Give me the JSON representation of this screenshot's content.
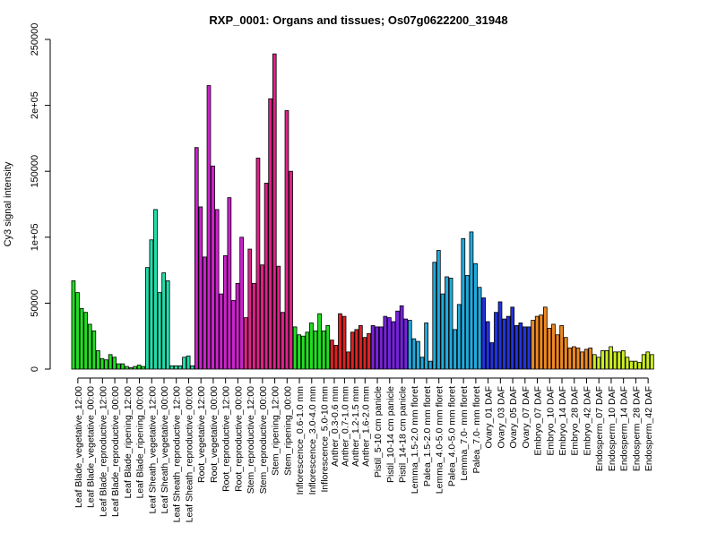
{
  "chart_data": {
    "type": "bar",
    "title": "RXP_0001: Organs and tissues; Os07g0622200_31948",
    "ylabel": "Cy3 signal intensity",
    "xlabel": "",
    "ylim": [
      0,
      250000
    ],
    "yticks": [
      {
        "value": 0,
        "label": "0"
      },
      {
        "value": 50000,
        "label": "50000"
      },
      {
        "value": 100000,
        "label": "1e+05"
      },
      {
        "value": 150000,
        "label": "150000"
      },
      {
        "value": 200000,
        "label": "2e+05"
      },
      {
        "value": 250000,
        "label": "250000"
      }
    ],
    "grid": false,
    "groups": [
      {
        "label": "Leaf Blade_vegetative_12:00",
        "color": "#22DD22",
        "values": [
          67000,
          58000,
          46000
        ]
      },
      {
        "label": "Leaf Blade_vegetative_00:00",
        "color": "#22DD22",
        "values": [
          43000,
          34000,
          29000
        ]
      },
      {
        "label": "Leaf Blade_reproductive_12:00",
        "color": "#22DD22",
        "values": [
          14000,
          8000,
          7000
        ]
      },
      {
        "label": "Leaf Blade_reproductive_00:00",
        "color": "#22DD22",
        "values": [
          11000,
          9000,
          4000
        ]
      },
      {
        "label": "Leaf Blade_ripening_12:00",
        "color": "#22DD22",
        "values": [
          4000,
          2000,
          1000
        ]
      },
      {
        "label": "Leaf Blade_ripening_00:00",
        "color": "#22DD22",
        "values": [
          2000,
          3000,
          2000
        ]
      },
      {
        "label": "Leaf Sheath_vegetative_12:00",
        "color": "#22DDAA",
        "values": [
          77000,
          98000,
          121000
        ]
      },
      {
        "label": "Leaf Sheath_vegetative_00:00",
        "color": "#22DDAA",
        "values": [
          58000,
          73000,
          67000
        ]
      },
      {
        "label": "Leaf Sheath_reproductive_12:00",
        "color": "#22DDAA",
        "values": [
          2500,
          2500,
          2500
        ]
      },
      {
        "label": "Leaf Sheath_reproductive_00:00",
        "color": "#22DDAA",
        "values": [
          9000,
          10000,
          2500
        ]
      },
      {
        "label": "Root_vegetative_12:00",
        "color": "#CC22CC",
        "values": [
          168000,
          123000,
          85000
        ]
      },
      {
        "label": "Root_vegetative_00:00",
        "color": "#CC22CC",
        "values": [
          215000,
          154000,
          121000
        ]
      },
      {
        "label": "Root_reproductive_12:00",
        "color": "#CC22CC",
        "values": [
          57000,
          86000,
          130000
        ]
      },
      {
        "label": "Root_reproductive_00:00",
        "color": "#CC22CC",
        "values": [
          52000,
          65000,
          100000
        ]
      },
      {
        "label": "Stem_reproductive_12:00",
        "color": "#DD2288",
        "values": [
          39000,
          91000,
          65000
        ]
      },
      {
        "label": "Stem_reproductive_00:00",
        "color": "#DD2288",
        "values": [
          160000,
          79000,
          141000
        ]
      },
      {
        "label": "Stem_ripening_12:00",
        "color": "#DD2288",
        "values": [
          205000,
          239000,
          78000
        ]
      },
      {
        "label": "Stem_ripening_00:00",
        "color": "#DD2288",
        "values": [
          43000,
          196000,
          150000
        ]
      },
      {
        "label": "Inflorescence_0.6-1.0 mm",
        "color": "#22DD22",
        "values": [
          32000,
          26000,
          25000
        ]
      },
      {
        "label": "Inflorescence_3.0-4.0 mm",
        "color": "#22DD22",
        "values": [
          28000,
          35000,
          29000
        ]
      },
      {
        "label": "Inflorescence_5.0-10 mm",
        "color": "#22DD22",
        "values": [
          42000,
          29000,
          33000
        ]
      },
      {
        "label": "Anther_0.3-0.6 mm",
        "color": "#DD2222",
        "values": [
          22000,
          18000
        ]
      },
      {
        "label": "Anther_0.7-1.0 mm",
        "color": "#DD2222",
        "values": [
          42000,
          40000,
          13000
        ]
      },
      {
        "label": "Anther_1.2-1.5 mm",
        "color": "#DD2222",
        "values": [
          28000,
          30000
        ]
      },
      {
        "label": "Anther_1.6-2.0 mm",
        "color": "#DD2222",
        "values": [
          33000,
          24000,
          27000
        ]
      },
      {
        "label": "Pistil_5-10 cm panicle",
        "color": "#7722DD",
        "values": [
          33000,
          32000,
          32000
        ]
      },
      {
        "label": "Pistil_10-14 cm panicle",
        "color": "#7722DD",
        "values": [
          40000,
          39000,
          36000
        ]
      },
      {
        "label": "Pistil_14-18 cm panicle",
        "color": "#7722DD",
        "values": [
          44000,
          48000,
          38000
        ]
      },
      {
        "label": "Lemma_1.5-2.0 mm floret",
        "color": "#22AADD",
        "values": [
          37000,
          23000,
          21000
        ]
      },
      {
        "label": "Palea_1.5-2.0 mm floret",
        "color": "#22AADD",
        "values": [
          9000,
          35000,
          6000
        ]
      },
      {
        "label": "Lemma_4.0-5.0 mm floret",
        "color": "#22AADD",
        "values": [
          81000,
          90000,
          57000
        ]
      },
      {
        "label": "Palea_4.0-5.0 mm floret",
        "color": "#22AADD",
        "values": [
          70000,
          69000,
          30000
        ]
      },
      {
        "label": "Lemma_7.0- mm floret",
        "color": "#22AADD",
        "values": [
          49000,
          99000,
          71000
        ]
      },
      {
        "label": "Palea_7.0- mm floret",
        "color": "#22AADD",
        "values": [
          104000,
          80000,
          62000
        ]
      },
      {
        "label": "Ovary_01 DAF",
        "color": "#2233DD",
        "values": [
          54000,
          36000,
          20000
        ]
      },
      {
        "label": "Ovary_03 DAF",
        "color": "#2233DD",
        "values": [
          43000,
          51000,
          38000
        ]
      },
      {
        "label": "Ovary_05 DAF",
        "color": "#2233DD",
        "values": [
          40000,
          47000,
          33000
        ]
      },
      {
        "label": "Ovary_07 DAF",
        "color": "#2233DD",
        "values": [
          35000,
          32000,
          32000
        ]
      },
      {
        "label": "Embryo_07 DAF",
        "color": "#EE8822",
        "values": [
          37000,
          40000,
          41000
        ]
      },
      {
        "label": "Embryo_10 DAF",
        "color": "#EE8822",
        "values": [
          47000,
          31000,
          34000
        ]
      },
      {
        "label": "Embryo_14 DAF",
        "color": "#EE8822",
        "values": [
          26000,
          33000,
          24000
        ]
      },
      {
        "label": "Embryo_28 DAF",
        "color": "#EE8822",
        "values": [
          16000,
          17000,
          16000
        ]
      },
      {
        "label": "Embryo_42 DAF",
        "color": "#EE8822",
        "values": [
          13000,
          15000,
          16000
        ]
      },
      {
        "label": "Endosperm_07 DAF",
        "color": "#CCEE22",
        "values": [
          11000,
          9000,
          14000
        ]
      },
      {
        "label": "Endosperm_10 DAF",
        "color": "#CCEE22",
        "values": [
          14000,
          17000,
          13000
        ]
      },
      {
        "label": "Endosperm_14 DAF",
        "color": "#CCEE22",
        "values": [
          13000,
          14000,
          9000
        ]
      },
      {
        "label": "Endosperm_28 DAF",
        "color": "#CCEE22",
        "values": [
          6000,
          6000,
          5000
        ]
      },
      {
        "label": "Endosperm_42 DAF",
        "color": "#CCEE22",
        "values": [
          11000,
          13000,
          11000
        ]
      }
    ]
  }
}
